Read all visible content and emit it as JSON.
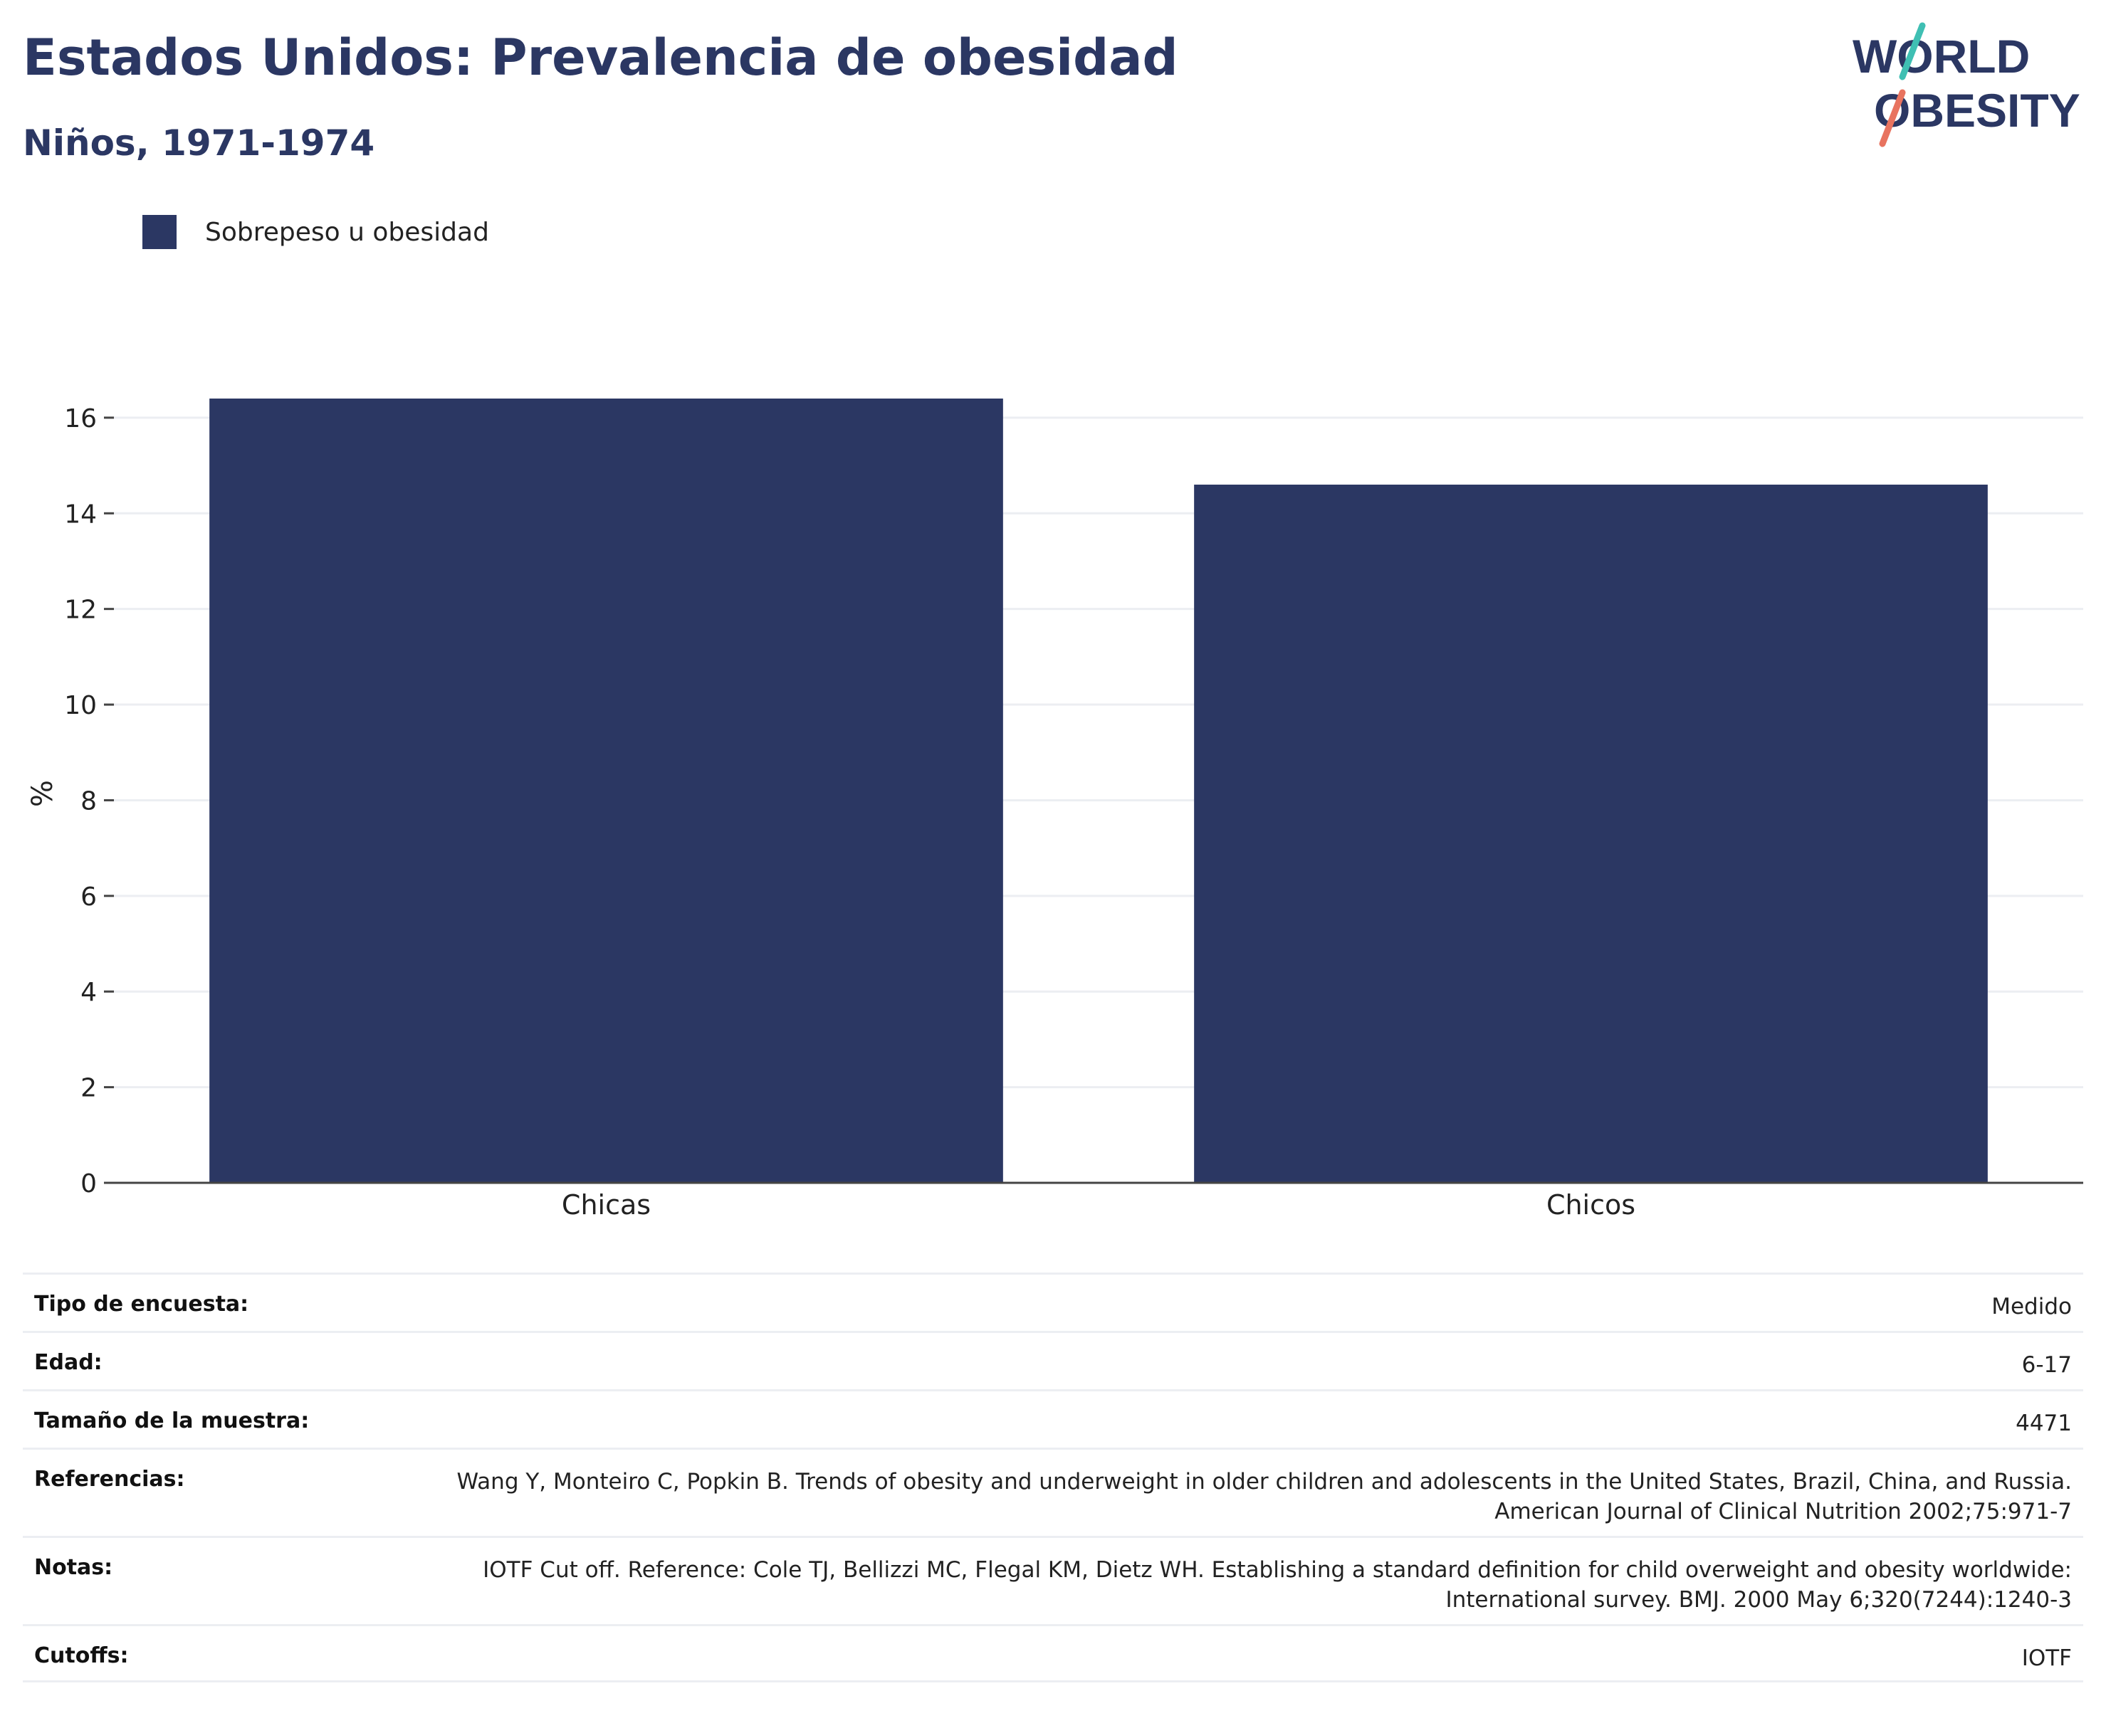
{
  "header": {
    "title": "Estados Unidos: Prevalencia de obesidad",
    "subtitle": "Niños, 1971-1974"
  },
  "logo": {
    "line1": "WORLD",
    "line2": "OBESITY"
  },
  "colors": {
    "bar": "#2b3763",
    "text": "#2b3763",
    "accent_teal": "#3fbfb3",
    "accent_coral": "#e8735f",
    "grid": "#eceef2"
  },
  "chart_data": {
    "type": "bar",
    "categories": [
      "Chicas",
      "Chicos"
    ],
    "series": [
      {
        "name": "Sobrepeso u obesidad",
        "values": [
          16.4,
          14.6
        ]
      }
    ],
    "title": "Estados Unidos: Prevalencia de obesidad",
    "subtitle": "Niños, 1971-1974",
    "xlabel": "",
    "ylabel": "%",
    "ylim": [
      0,
      16.4
    ],
    "yticks": [
      0,
      2,
      4,
      6,
      8,
      10,
      12,
      14,
      16
    ],
    "grid": true,
    "legend": "top-left"
  },
  "meta": [
    {
      "key": "Tipo de encuesta:",
      "value": "Medido"
    },
    {
      "key": "Edad:",
      "value": "6-17"
    },
    {
      "key": "Tamaño de la muestra:",
      "value": "4471"
    },
    {
      "key": "Referencias:",
      "value": "Wang Y, Monteiro C, Popkin B. Trends of obesity and underweight in older children and adolescents in the United States, Brazil, China, and Russia. American Journal of Clinical Nutrition 2002;75:971-7"
    },
    {
      "key": "Notas:",
      "value": "IOTF Cut off. Reference: Cole TJ, Bellizzi MC, Flegal KM, Dietz WH. Establishing a standard definition for child overweight and obesity worldwide: International survey. BMJ. 2000 May 6;320(7244):1240-3"
    },
    {
      "key": "Cutoffs:",
      "value": "IOTF"
    }
  ]
}
